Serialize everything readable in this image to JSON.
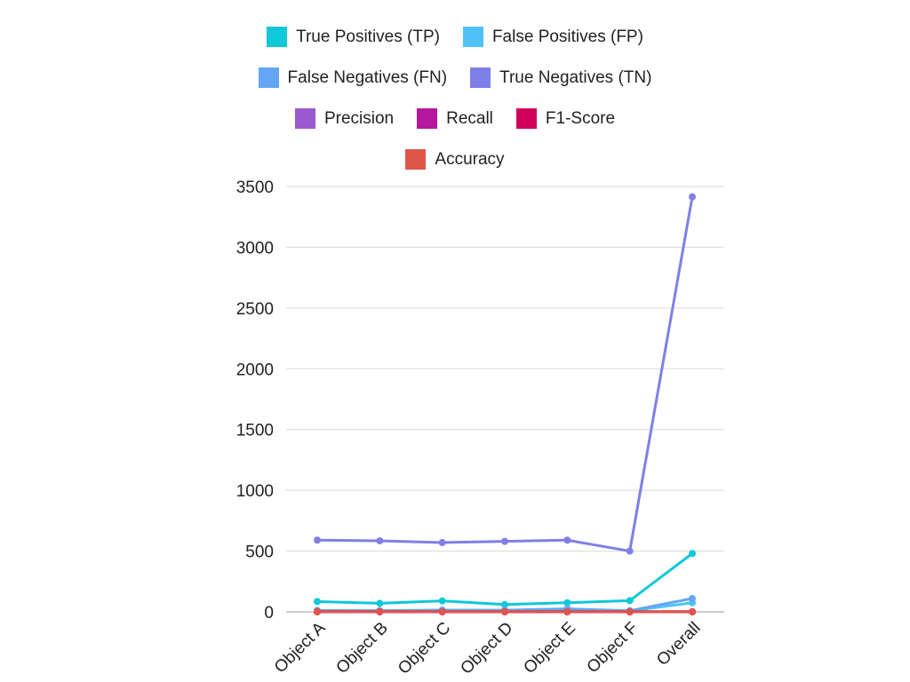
{
  "chart_data": {
    "type": "line",
    "categories": [
      "Object A",
      "Object B",
      "Object C",
      "Object D",
      "Object E",
      "Object F",
      "Overall"
    ],
    "ylim": [
      0,
      3500
    ],
    "yticks": [
      0,
      500,
      1000,
      1500,
      2000,
      2500,
      3000,
      3500
    ],
    "grid": true,
    "legend_position": "top",
    "series": [
      {
        "name": "True Positives (TP)",
        "color": "#0fc8d8",
        "values": [
          85,
          70,
          90,
          60,
          75,
          92,
          480
        ]
      },
      {
        "name": "False Positives (FP)",
        "color": "#4fc3f7",
        "values": [
          10,
          8,
          12,
          9,
          11,
          7,
          75
        ]
      },
      {
        "name": "False Negatives (FN)",
        "color": "#64a6f5",
        "values": [
          12,
          10,
          15,
          14,
          25,
          9,
          110
        ]
      },
      {
        "name": "True Negatives (TN)",
        "color": "#7f7fe8",
        "values": [
          590,
          585,
          570,
          580,
          590,
          500,
          3415
        ]
      },
      {
        "name": "Precision",
        "color": "#9b59d0",
        "values": [
          0.89,
          0.9,
          0.88,
          0.87,
          0.87,
          0.93,
          0.88
        ]
      },
      {
        "name": "Recall",
        "color": "#b5179e",
        "values": [
          0.88,
          0.88,
          0.86,
          0.81,
          0.75,
          0.91,
          0.85
        ]
      },
      {
        "name": "F1-Score",
        "color": "#d1005a",
        "values": [
          0.88,
          0.89,
          0.87,
          0.84,
          0.8,
          0.92,
          0.86
        ]
      },
      {
        "name": "Accuracy",
        "color": "#e0554a",
        "values": [
          0.97,
          0.97,
          0.96,
          0.96,
          0.95,
          0.97,
          0.96
        ]
      }
    ]
  }
}
